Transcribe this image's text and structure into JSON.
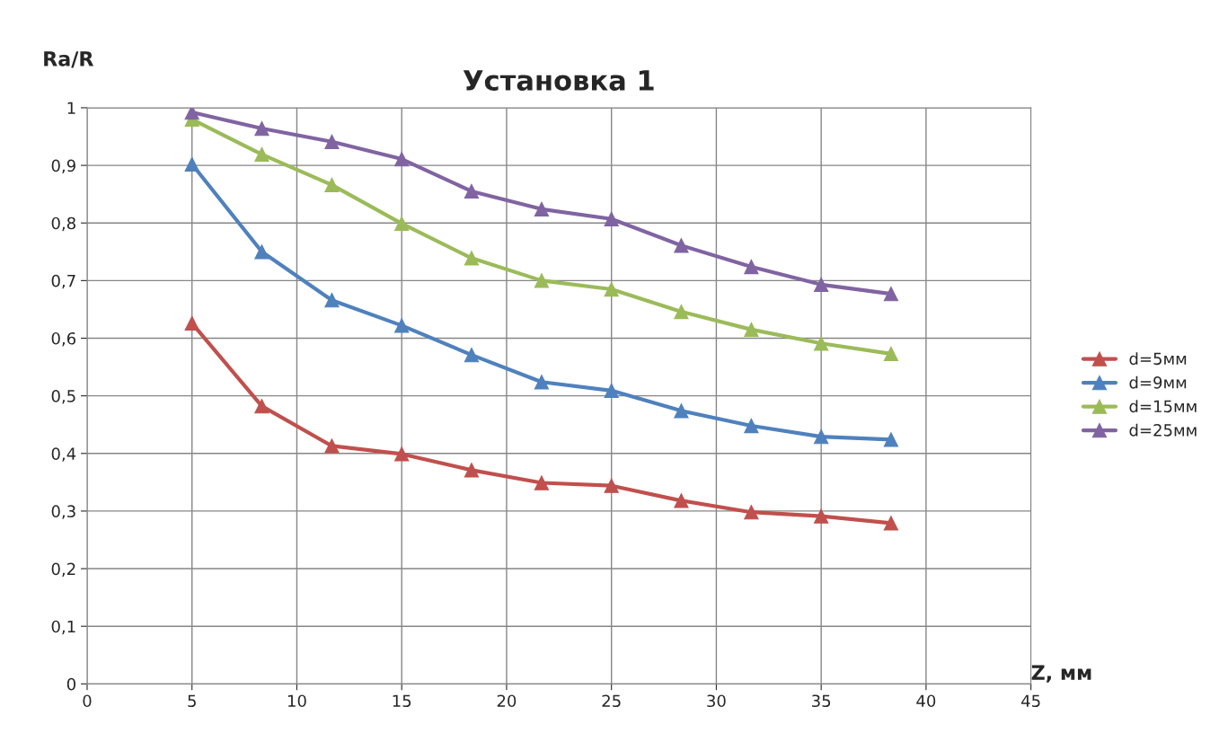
{
  "chart_data": {
    "type": "line",
    "title": "Установка 1",
    "xlabel": "Z, мм",
    "ylabel": "Ra/R",
    "x": [
      5,
      8.33,
      11.67,
      15,
      18.33,
      21.67,
      25,
      28.33,
      31.67,
      35,
      38.33
    ],
    "series": [
      {
        "name": "d=5мм",
        "color": "#c0504d",
        "values": [
          0.626,
          0.482,
          0.413,
          0.399,
          0.371,
          0.349,
          0.344,
          0.318,
          0.298,
          0.291,
          0.279
        ]
      },
      {
        "name": "d=9мм",
        "color": "#4f81bd",
        "values": [
          0.902,
          0.75,
          0.666,
          0.622,
          0.571,
          0.524,
          0.509,
          0.474,
          0.448,
          0.429,
          0.424
        ]
      },
      {
        "name": "d=15мм",
        "color": "#9bbb59",
        "values": [
          0.98,
          0.919,
          0.866,
          0.799,
          0.739,
          0.7,
          0.685,
          0.646,
          0.615,
          0.591,
          0.573
        ]
      },
      {
        "name": "d=25мм",
        "color": "#8064a2",
        "values": [
          0.992,
          0.964,
          0.941,
          0.911,
          0.855,
          0.824,
          0.807,
          0.761,
          0.724,
          0.693,
          0.677
        ]
      }
    ],
    "xlim": [
      0,
      45
    ],
    "xticks": [
      0,
      5,
      10,
      15,
      20,
      25,
      30,
      35,
      40,
      45
    ],
    "ylim": [
      0,
      1
    ],
    "yticks": [
      0,
      {
        "value": 0.1,
        "label": "0,1"
      },
      {
        "value": 0.2,
        "label": "0,2"
      },
      {
        "value": 0.3,
        "label": "0,3"
      },
      {
        "value": 0.4,
        "label": "0,4"
      },
      {
        "value": 0.5,
        "label": "0,5"
      },
      {
        "value": 0.6,
        "label": "0,6"
      },
      {
        "value": 0.7,
        "label": "0,7"
      },
      {
        "value": 0.8,
        "label": "0,8"
      },
      {
        "value": 0.9,
        "label": "0,9"
      },
      1
    ],
    "grid": true,
    "legend": "right",
    "marker": "triangle",
    "line_style": "solid"
  }
}
